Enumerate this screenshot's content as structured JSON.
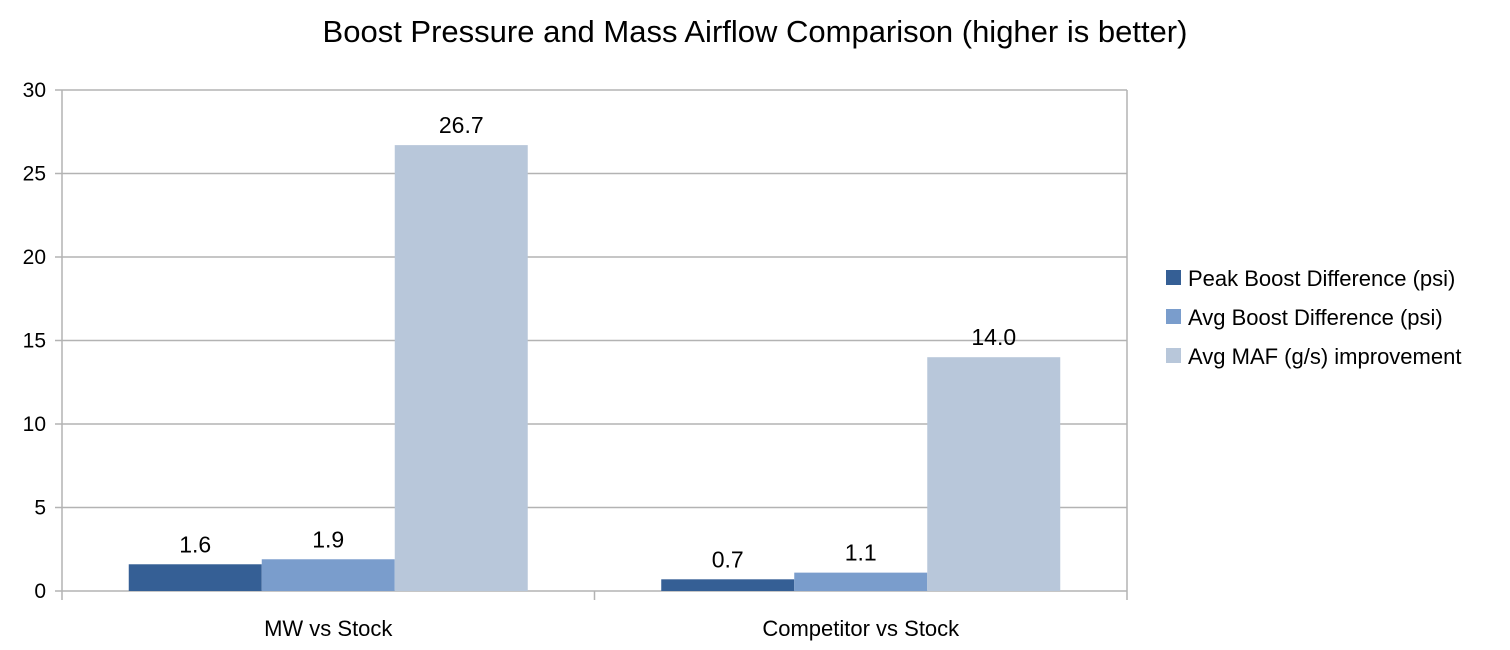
{
  "chart_data": {
    "type": "bar",
    "title": "Boost Pressure and Mass Airflow Comparison (higher is better)",
    "xlabel": "",
    "ylabel": "",
    "categories": [
      "MW vs Stock",
      "Competitor vs Stock"
    ],
    "series": [
      {
        "name": "Peak Boost Difference (psi)",
        "values": [
          1.6,
          0.7
        ],
        "labels": [
          "1.6",
          "0.7"
        ],
        "color": "#355f95"
      },
      {
        "name": "Avg Boost Difference (psi)",
        "values": [
          1.9,
          1.1
        ],
        "labels": [
          "1.9",
          "1.1"
        ],
        "color": "#7a9dcc"
      },
      {
        "name": "Avg MAF (g/s) improvement",
        "values": [
          26.7,
          14.0
        ],
        "labels": [
          "26.7",
          "14.0"
        ],
        "color": "#b8c7da"
      }
    ],
    "ylim": [
      0,
      30
    ],
    "yticks": [
      0,
      5,
      10,
      15,
      20,
      25,
      30
    ],
    "grid": true,
    "legend_position": "right"
  }
}
